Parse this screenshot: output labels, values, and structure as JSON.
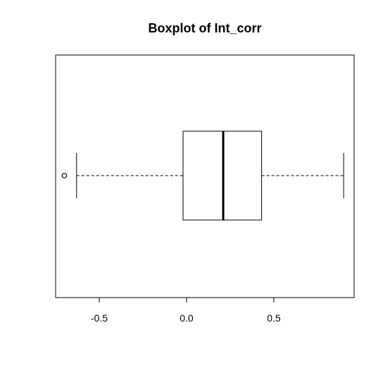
{
  "chart_data": {
    "type": "boxplot",
    "orientation": "horizontal",
    "title": "Boxplot of Int_corr",
    "xlabel": "",
    "ylabel": "",
    "xlim": [
      -0.75,
      0.96
    ],
    "x_ticks": [
      -0.5,
      0.0,
      0.5
    ],
    "x_tick_labels": [
      "-0.5",
      "0.0",
      "0.5"
    ],
    "stats": {
      "whisker_low": -0.63,
      "q1": -0.02,
      "median": 0.21,
      "q3": 0.43,
      "whisker_high": 0.9
    },
    "outliers": [
      -0.7
    ],
    "grid": false,
    "colors": {
      "stroke": "#000000",
      "fill": "#ffffff"
    }
  }
}
